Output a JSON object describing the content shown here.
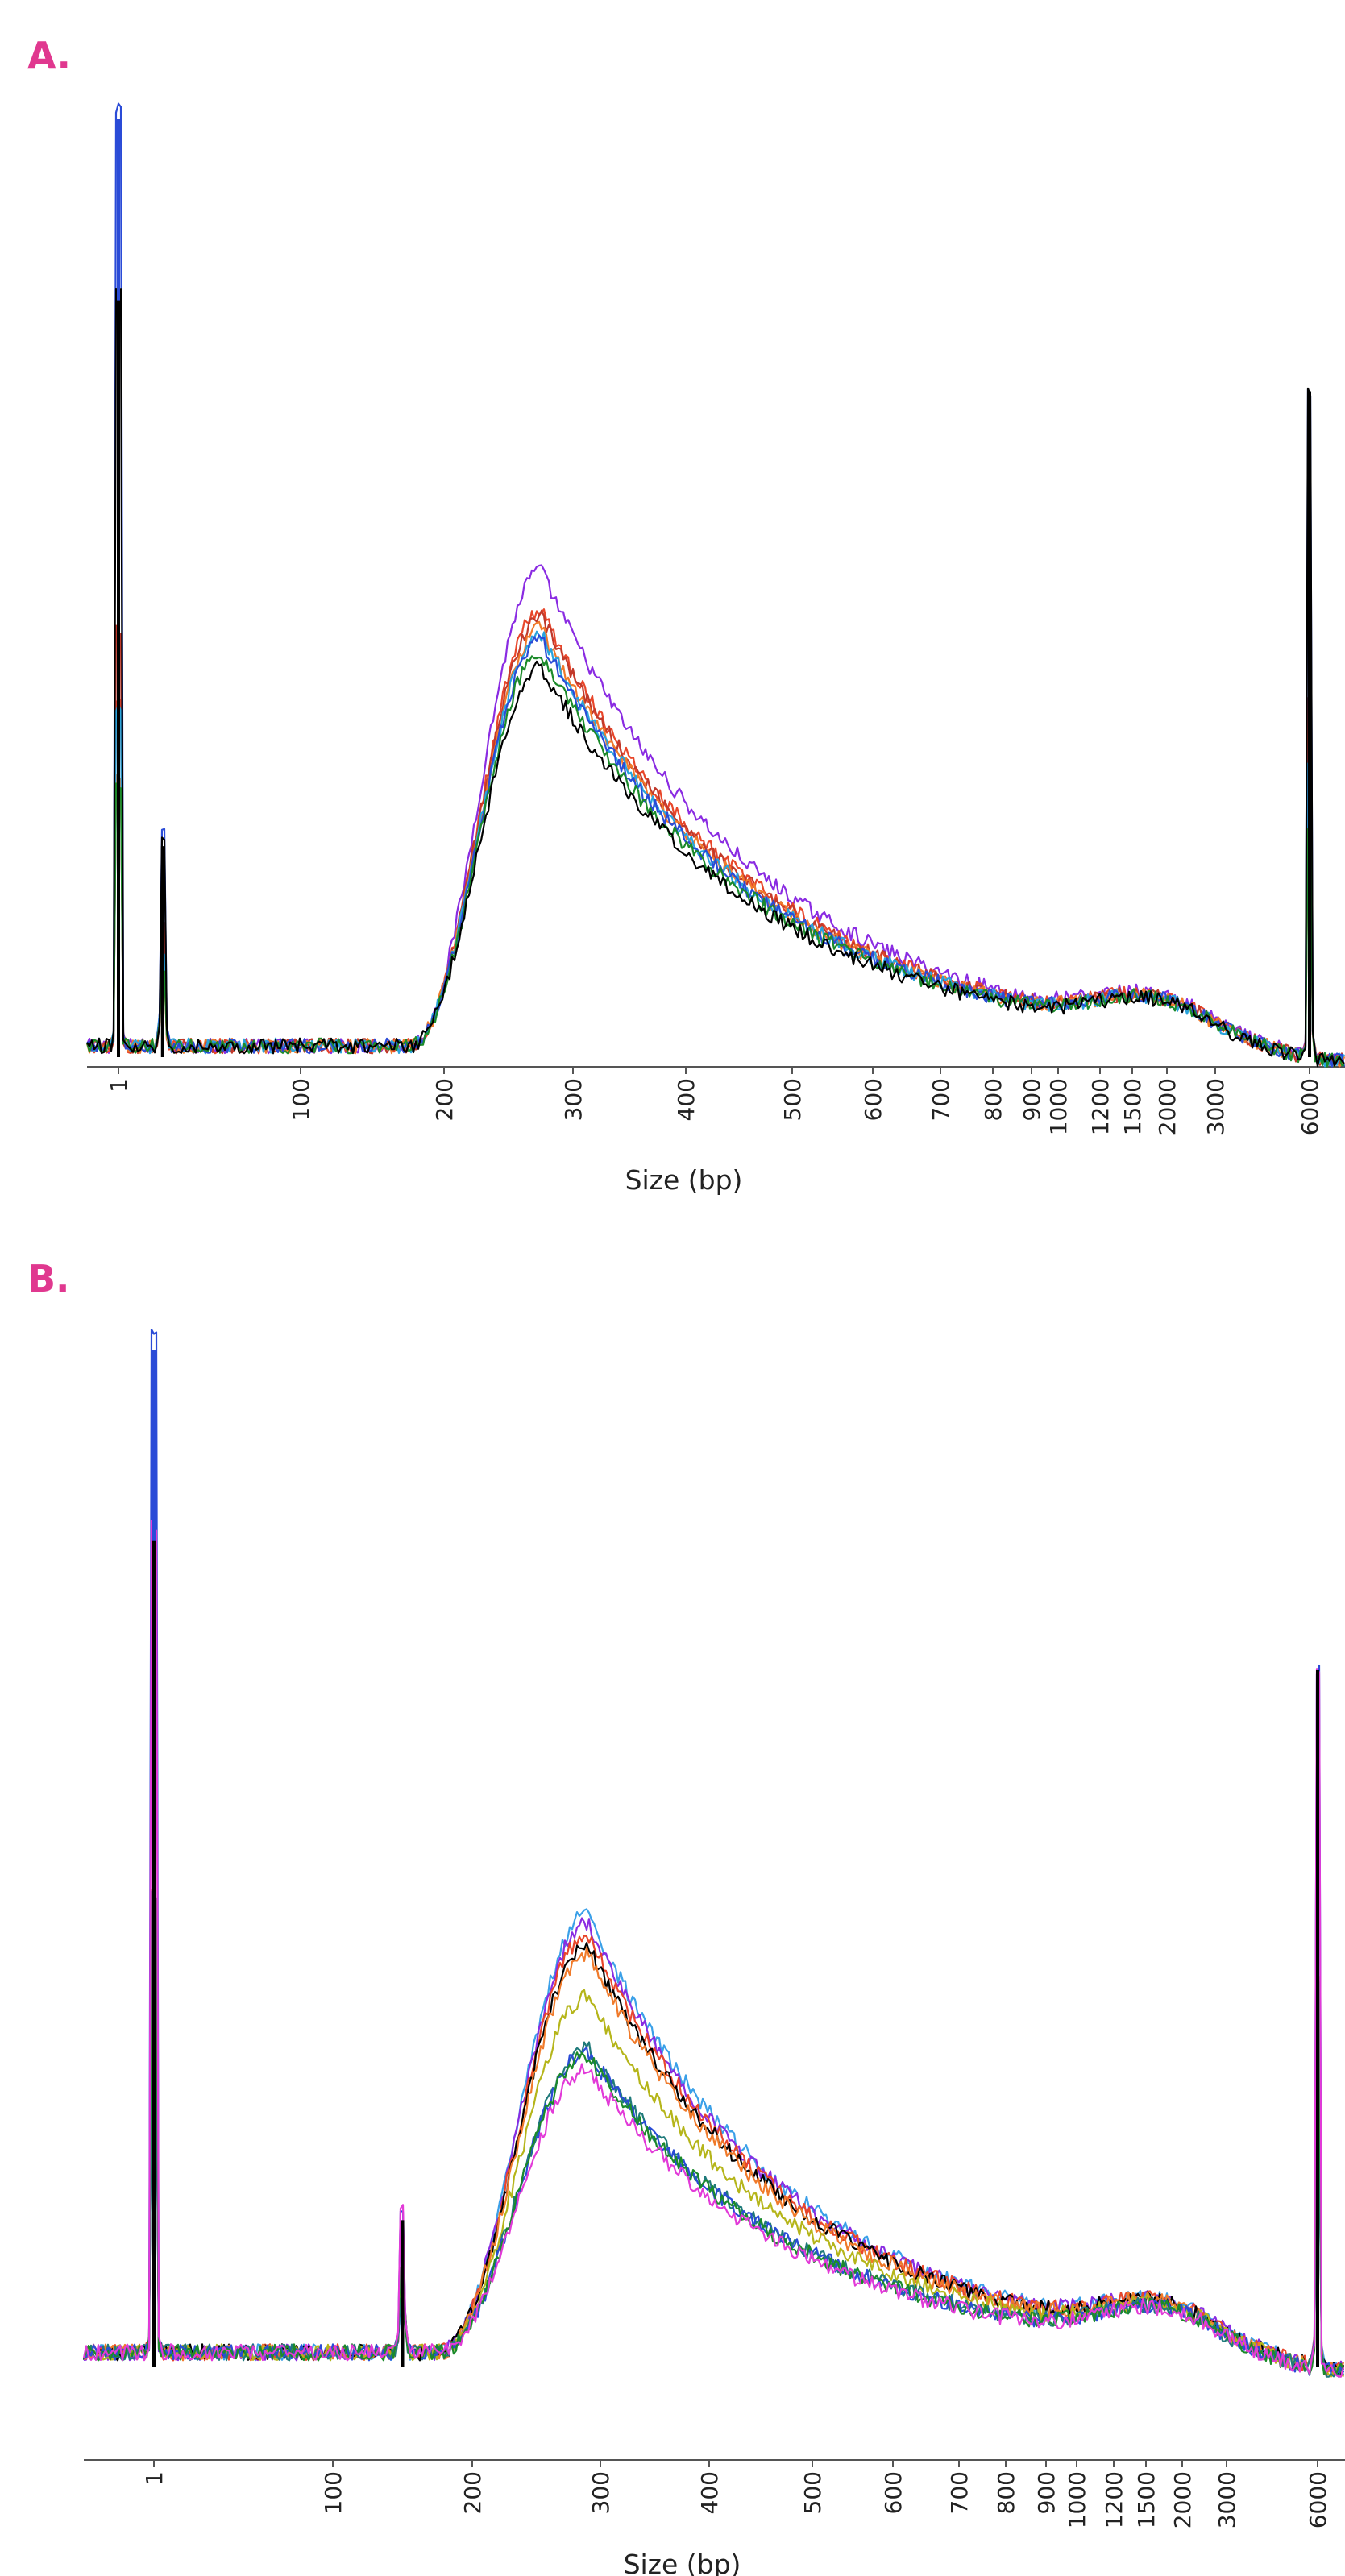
{
  "panels": [
    {
      "label": "A.",
      "chart_data": {
        "type": "line",
        "xlabel": "Size (bp)",
        "ylabel": "",
        "x_scale": "electropherogram (nonlinear size ladder)",
        "x_ticks": [
          "1",
          "100",
          "200",
          "300",
          "400",
          "500",
          "600",
          "700",
          "800",
          "900",
          "1000",
          "1200",
          "1500",
          "2000",
          "3000",
          "6000"
        ],
        "ylim": [
          0,
          100
        ],
        "grid": false,
        "legend": "none",
        "series": [
          {
            "color": "#8a2be2",
            "peak": 50.8
          },
          {
            "color": "#e8462a",
            "peak": 46.5
          },
          {
            "color": "#c0392b",
            "peak": 45.8
          },
          {
            "color": "#f07a2a",
            "peak": 44.5
          },
          {
            "color": "#29a3dc",
            "peak": 44.0
          },
          {
            "color": "#2a4bd7",
            "peak": 43.4
          },
          {
            "color": "#1b8a2a",
            "peak": 42.0
          },
          {
            "color": "#000000",
            "peak": 40.5
          }
        ],
        "markers": [
          {
            "size": "1",
            "height_black": 80.7,
            "height_blue": 100.0
          },
          {
            "size": "25",
            "height": 22.5
          },
          {
            "size": "6000",
            "height": 71.0
          }
        ],
        "broad_peak_mode_bp": 275,
        "secondary_bump_bp": 1700
      }
    },
    {
      "label": "B.",
      "chart_data": {
        "type": "line",
        "xlabel": "Size (bp)",
        "ylabel": "",
        "x_scale": "electropherogram (nonlinear size ladder)",
        "x_ticks": [
          "1",
          "100",
          "200",
          "300",
          "400",
          "500",
          "600",
          "700",
          "800",
          "900",
          "1000",
          "1200",
          "1500",
          "2000",
          "3000",
          "6000"
        ],
        "ylim": [
          0,
          100
        ],
        "grid": false,
        "legend": "none",
        "series": [
          {
            "color": "#3aa0e8",
            "peak": 43.2
          },
          {
            "color": "#8a2be2",
            "peak": 42.3
          },
          {
            "color": "#e8462a",
            "peak": 41.2
          },
          {
            "color": "#000000",
            "peak": 40.1
          },
          {
            "color": "#f07a2a",
            "peak": 39.2
          },
          {
            "color": "#b5b51a",
            "peak": 35.0
          },
          {
            "color": "#1f7a7a",
            "peak": 30.1
          },
          {
            "color": "#2a4bd7",
            "peak": 29.6
          },
          {
            "color": "#1b8a2a",
            "peak": 29.3
          },
          {
            "color": "#e23ad8",
            "peak": 27.8
          }
        ],
        "markers": [
          {
            "size": "1",
            "height_black": 81.3,
            "height_blue": 100.0
          },
          {
            "size": "150",
            "height": 14.4
          },
          {
            "size": "6000",
            "height": 68.6
          }
        ],
        "broad_peak_mode_bp": 290,
        "secondary_bump_bp": 1600
      }
    }
  ]
}
